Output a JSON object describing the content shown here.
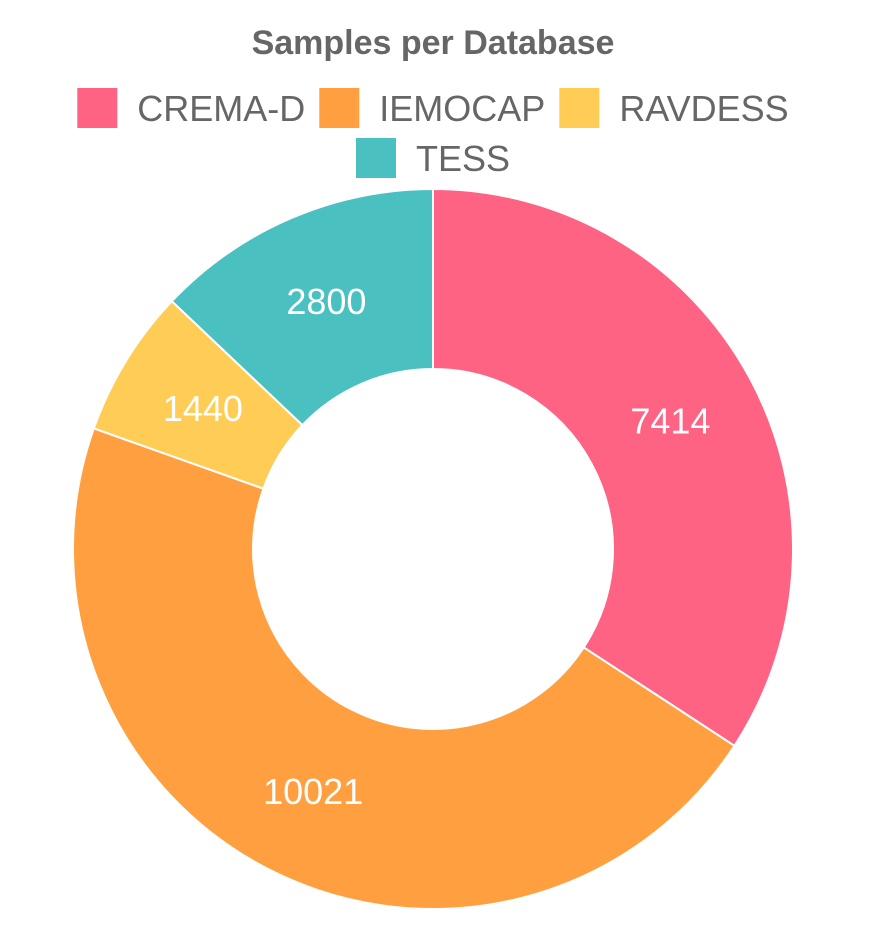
{
  "chart_data": {
    "type": "pie",
    "variant": "doughnut",
    "title": "Samples per Database",
    "legend_position": "top",
    "categories": [
      "CREMA-D",
      "IEMOCAP",
      "RAVDESS",
      "TESS"
    ],
    "values": [
      7414,
      10021,
      1440,
      2800
    ],
    "colors": [
      "#ff6384",
      "#ff9f40",
      "#ffcd56",
      "#4bc0c0"
    ]
  }
}
